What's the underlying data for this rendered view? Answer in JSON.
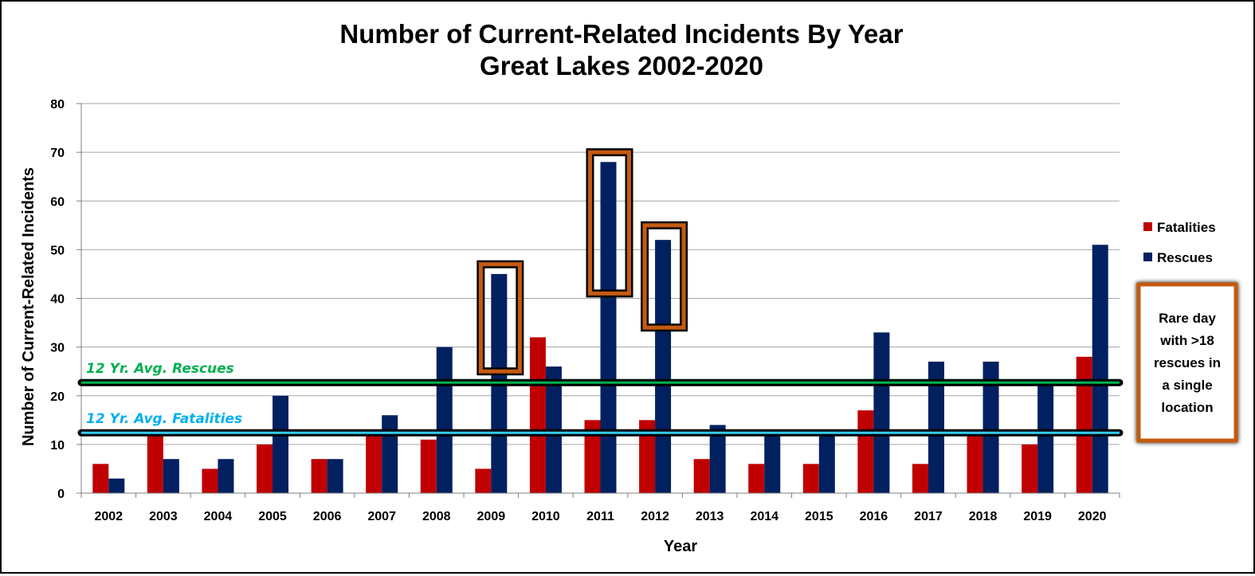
{
  "chart_data": {
    "type": "bar",
    "title": "Number of Current-Related Incidents By Year",
    "subtitle": "Great Lakes 2002-2020",
    "xlabel": "Year",
    "ylabel": "Number of Current-Related Incidents",
    "ylim": [
      0,
      80
    ],
    "yticks": [
      0,
      10,
      20,
      30,
      40,
      50,
      60,
      70,
      80
    ],
    "grid": true,
    "legend_position": "right",
    "categories": [
      "2002",
      "2003",
      "2004",
      "2005",
      "2006",
      "2007",
      "2008",
      "2009",
      "2010",
      "2011",
      "2012",
      "2013",
      "2014",
      "2015",
      "2016",
      "2017",
      "2018",
      "2019",
      "2020"
    ],
    "series": [
      {
        "name": "Fatalities",
        "color": "#c00000",
        "values": [
          6,
          12,
          5,
          10,
          7,
          12,
          11,
          5,
          32,
          15,
          15,
          7,
          6,
          6,
          17,
          6,
          12,
          10,
          28
        ]
      },
      {
        "name": "Rescues",
        "color": "#002060",
        "values": [
          3,
          7,
          7,
          20,
          7,
          16,
          30,
          45,
          26,
          68,
          52,
          14,
          12,
          12,
          33,
          27,
          27,
          22,
          51
        ]
      }
    ],
    "reference_lines": [
      {
        "label": "12 Yr. Avg. Rescues",
        "value": 22.7,
        "color": "#00b050",
        "label_color": "#00b050"
      },
      {
        "label": "12 Yr. Avg. Fatalities",
        "value": 12.4,
        "color": "#33ccff",
        "label_color": "#00b0f0"
      }
    ],
    "highlights": [
      {
        "category": "2009",
        "range": [
          25,
          47
        ]
      },
      {
        "category": "2011",
        "range": [
          41,
          70
        ]
      },
      {
        "category": "2012",
        "range": [
          34,
          55
        ]
      }
    ],
    "highlight_color": "#c55a11",
    "callout": {
      "lines": [
        "Rare day",
        "with >18",
        "rescues in",
        "a single",
        "location"
      ]
    }
  }
}
